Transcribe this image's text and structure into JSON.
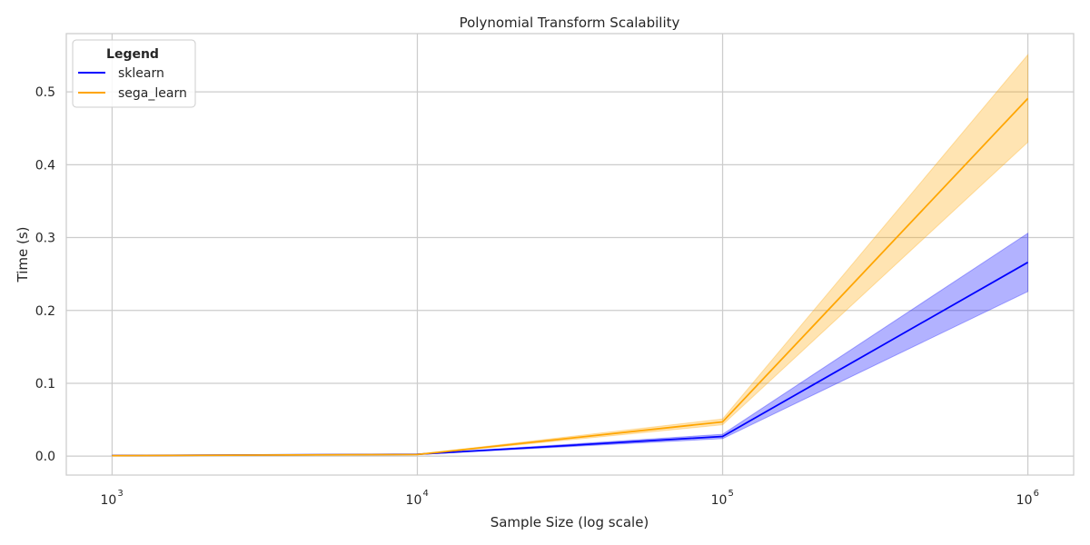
{
  "chart_data": {
    "type": "line",
    "title": "Polynomial Transform Scalability",
    "xlabel": "Sample Size (log scale)",
    "ylabel": "Time (s)",
    "x_scale": "log",
    "x": [
      1000,
      10000,
      100000,
      1000000
    ],
    "x_tick_base": "10",
    "x_tick_exponents": [
      "3",
      "4",
      "5",
      "6"
    ],
    "y_ticks": [
      "0.0",
      "0.1",
      "0.2",
      "0.3",
      "0.4",
      "0.5"
    ],
    "ylim": [
      -0.026,
      0.58
    ],
    "grid": true,
    "legend": {
      "title": "Legend",
      "placement": "top-left"
    },
    "series": [
      {
        "name": "sklearn",
        "color": "#0000ff",
        "values": [
          0.0008,
          0.0025,
          0.027,
          0.266
        ],
        "lower": [
          0.0006,
          0.0022,
          0.024,
          0.226
        ],
        "upper": [
          0.001,
          0.0028,
          0.03,
          0.306
        ]
      },
      {
        "name": "sega_learn",
        "color": "#ffa500",
        "values": [
          0.0007,
          0.0022,
          0.047,
          0.491
        ],
        "lower": [
          0.0005,
          0.0018,
          0.043,
          0.431
        ],
        "upper": [
          0.0009,
          0.0026,
          0.051,
          0.551
        ]
      }
    ]
  }
}
